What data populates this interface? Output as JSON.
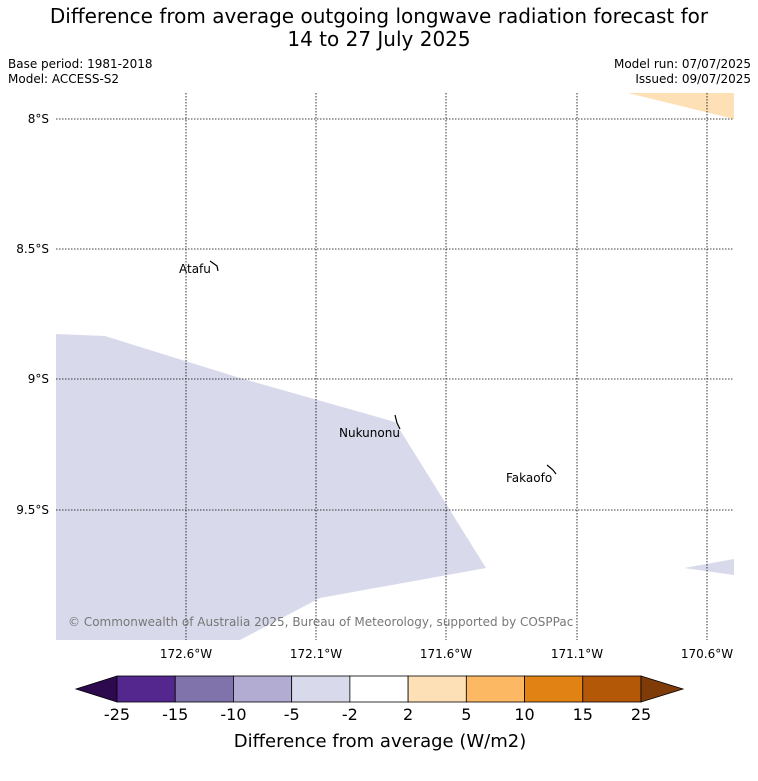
{
  "header": {
    "title_line1": "Difference from average outgoing longwave radiation forecast for",
    "title_line2": "14 to 27 July 2025",
    "base_period": "Base period: 1981-2018",
    "model": "Model: ACCESS-S2",
    "model_run": "Model run: 07/07/2025",
    "issued": "Issued: 09/07/2025"
  },
  "map": {
    "lat_labels": [
      "8°S",
      "8.5°S",
      "9°S",
      "9.5°S"
    ],
    "lon_labels": [
      "172.6°W",
      "172.1°W",
      "171.6°W",
      "171.1°W",
      "170.6°W"
    ],
    "places": [
      {
        "name": "Atafu"
      },
      {
        "name": "Nukunonu"
      },
      {
        "name": "Fakaofo"
      }
    ],
    "copyright": "© Commonwealth of Australia 2025, Bureau of Meteorology, supported by COSPPac"
  },
  "colorbar": {
    "title": "Difference from average (W/m2)",
    "ticks": [
      "-25",
      "-15",
      "-10",
      "-5",
      "-2",
      "2",
      "5",
      "10",
      "15",
      "25"
    ],
    "colors": {
      "under": "#2d0a4e",
      "bins": [
        "#54278f",
        "#8073ac",
        "#b2abd2",
        "#d8daeb",
        "#ffffff",
        "#fee0b6",
        "#fdb863",
        "#e08214",
        "#b35806"
      ],
      "over": "#7f3b08"
    }
  }
}
